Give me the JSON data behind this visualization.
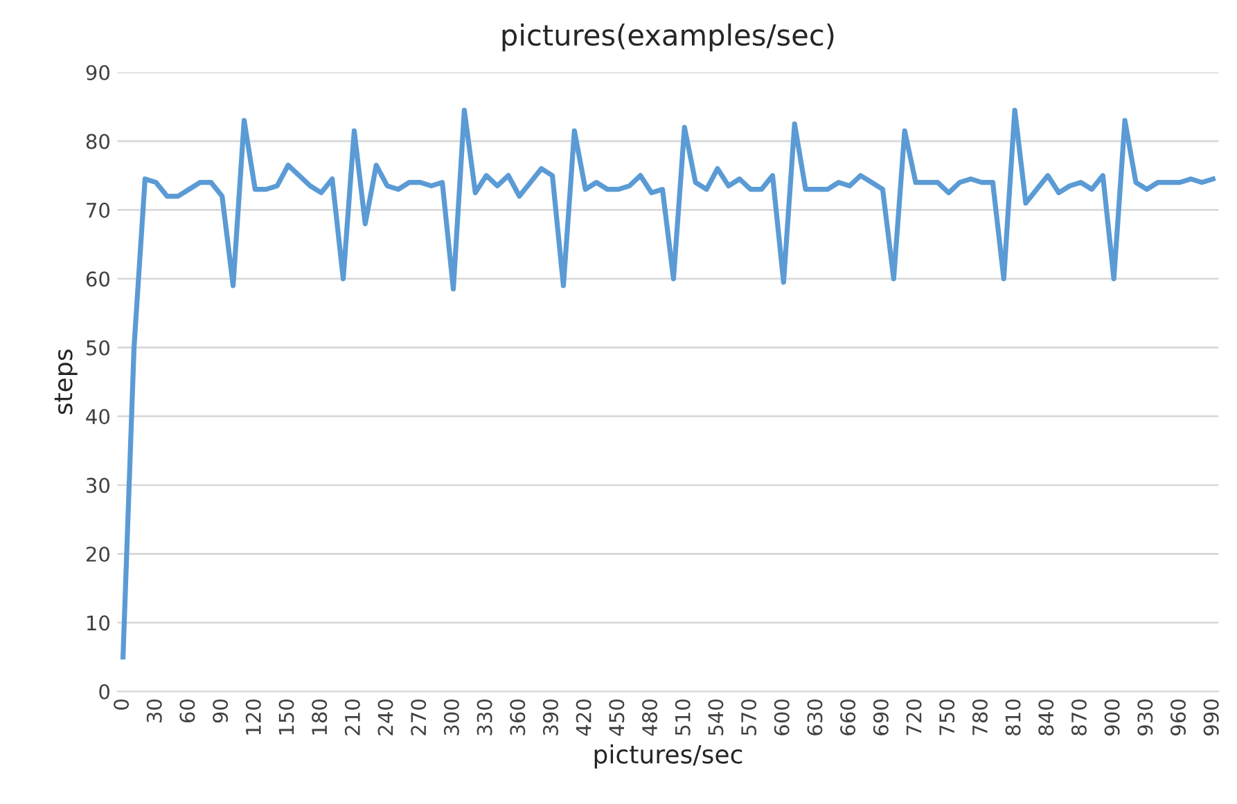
{
  "chart_data": {
    "type": "line",
    "title": "pictures(examples/sec)",
    "xlabel": "pictures/sec",
    "ylabel": "steps",
    "categories": [
      "0",
      null,
      null,
      "30",
      null,
      null,
      "60",
      null,
      null,
      "90",
      null,
      null,
      "120",
      null,
      null,
      "150",
      null,
      null,
      "180",
      null,
      null,
      "210",
      null,
      null,
      "240",
      null,
      null,
      "270",
      null,
      null,
      "300",
      null,
      null,
      "330",
      null,
      null,
      "360",
      null,
      null,
      "390",
      null,
      null,
      "420",
      null,
      null,
      "450",
      null,
      null,
      "480",
      null,
      null,
      "510",
      null,
      null,
      "540",
      null,
      null,
      "570",
      null,
      null,
      "600",
      null,
      null,
      "630",
      null,
      null,
      "660",
      null,
      null,
      "690",
      null,
      null,
      "720",
      null,
      null,
      "750",
      null,
      null,
      "780",
      null,
      null,
      "810",
      null,
      null,
      "840",
      null,
      null,
      "870",
      null,
      null,
      "900",
      null,
      null,
      "930",
      null,
      null,
      "960",
      null,
      null,
      "990"
    ],
    "series": [
      {
        "color": "#5b9bd5",
        "values": [
          5,
          50,
          74.5,
          74,
          72,
          72,
          73,
          74,
          74,
          72,
          59,
          83,
          73,
          73,
          73.5,
          76.5,
          75,
          73.5,
          72.5,
          74.5,
          60,
          81.5,
          68,
          76.5,
          73.5,
          73,
          74,
          74,
          73.5,
          74,
          58.5,
          84.5,
          72.5,
          75,
          73.5,
          75,
          72,
          74,
          76,
          75,
          59,
          81.5,
          73,
          74,
          73,
          73,
          73.5,
          75,
          72.5,
          73,
          60,
          82,
          74,
          73,
          76,
          73.5,
          74.5,
          73,
          73,
          75,
          59.5,
          82.5,
          73,
          73,
          73,
          74,
          73.5,
          75,
          74,
          73,
          60,
          81.5,
          74,
          74,
          74,
          72.5,
          74,
          74.5,
          74,
          74,
          60,
          84.5,
          71,
          73,
          75,
          72.5,
          73.5,
          74,
          73,
          75,
          60,
          83,
          74,
          73,
          74,
          74,
          74,
          74.5,
          74,
          74.5
        ]
      }
    ],
    "ylim": [
      0,
      90
    ],
    "yticks": [
      0,
      10,
      20,
      30,
      40,
      50,
      60,
      70,
      80,
      90
    ],
    "grid": "y",
    "legend": false,
    "marker": "none",
    "line_style": "solid"
  }
}
